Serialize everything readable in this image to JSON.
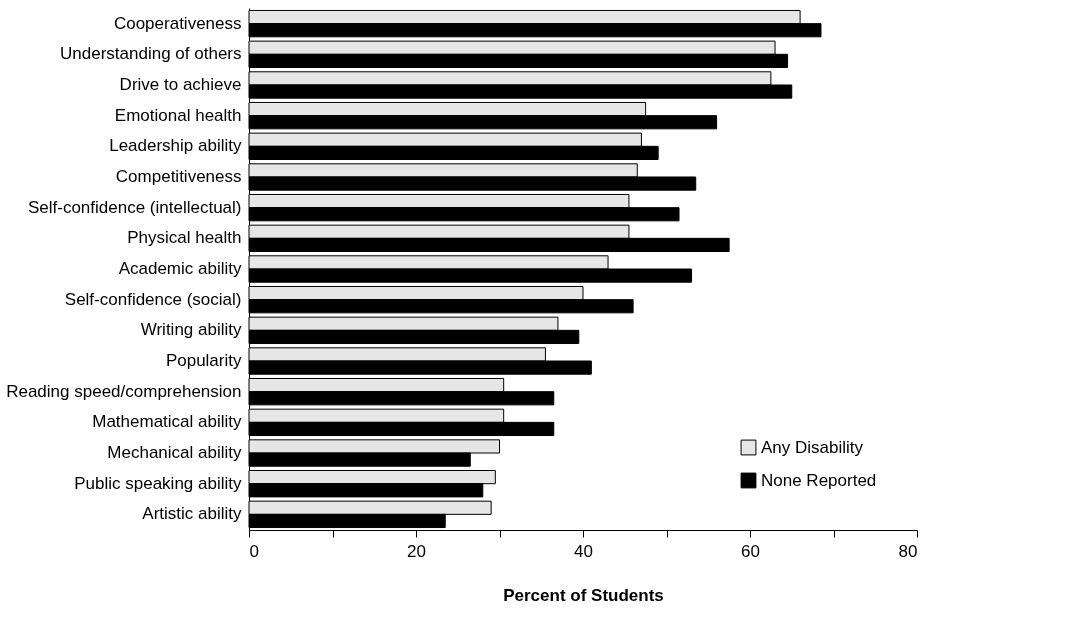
{
  "chart_data": {
    "type": "bar",
    "orientation": "horizontal",
    "xlabel": "Percent of Students",
    "categories": [
      "Cooperativeness",
      "Understanding of others",
      "Drive to achieve",
      "Emotional health",
      "Leadership ability",
      "Competitiveness",
      "Self-confidence (intellectual)",
      "Physical health",
      "Academic ability",
      "Self-confidence (social)",
      "Writing ability",
      "Popularity",
      "Reading speed/comprehension",
      "Mathematical ability",
      "Mechanical ability",
      "Public speaking ability",
      "Artistic ability"
    ],
    "series": [
      {
        "name": "Any Disability",
        "color": "#e6e6e6",
        "values": [
          66,
          63,
          62.5,
          47.5,
          47,
          46.5,
          45.5,
          45.5,
          43,
          40,
          37,
          35.5,
          30.5,
          30.5,
          30,
          29.5,
          29
        ]
      },
      {
        "name": "None Reported",
        "color": "#000000",
        "values": [
          68.5,
          64.5,
          65,
          56,
          49,
          53.5,
          51.5,
          57.5,
          53,
          46,
          39.5,
          41,
          36.5,
          36.5,
          26.5,
          28,
          23.5
        ]
      }
    ],
    "xlim": [
      0,
      80
    ],
    "xticks": [
      0,
      {
        "value": 10,
        "label": null
      },
      20,
      {
        "value": 30,
        "label": null
      },
      40,
      {
        "value": 50,
        "label": null
      },
      60,
      {
        "value": 70,
        "label": null
      },
      80
    ],
    "grid": false,
    "legend": "bottom right"
  }
}
